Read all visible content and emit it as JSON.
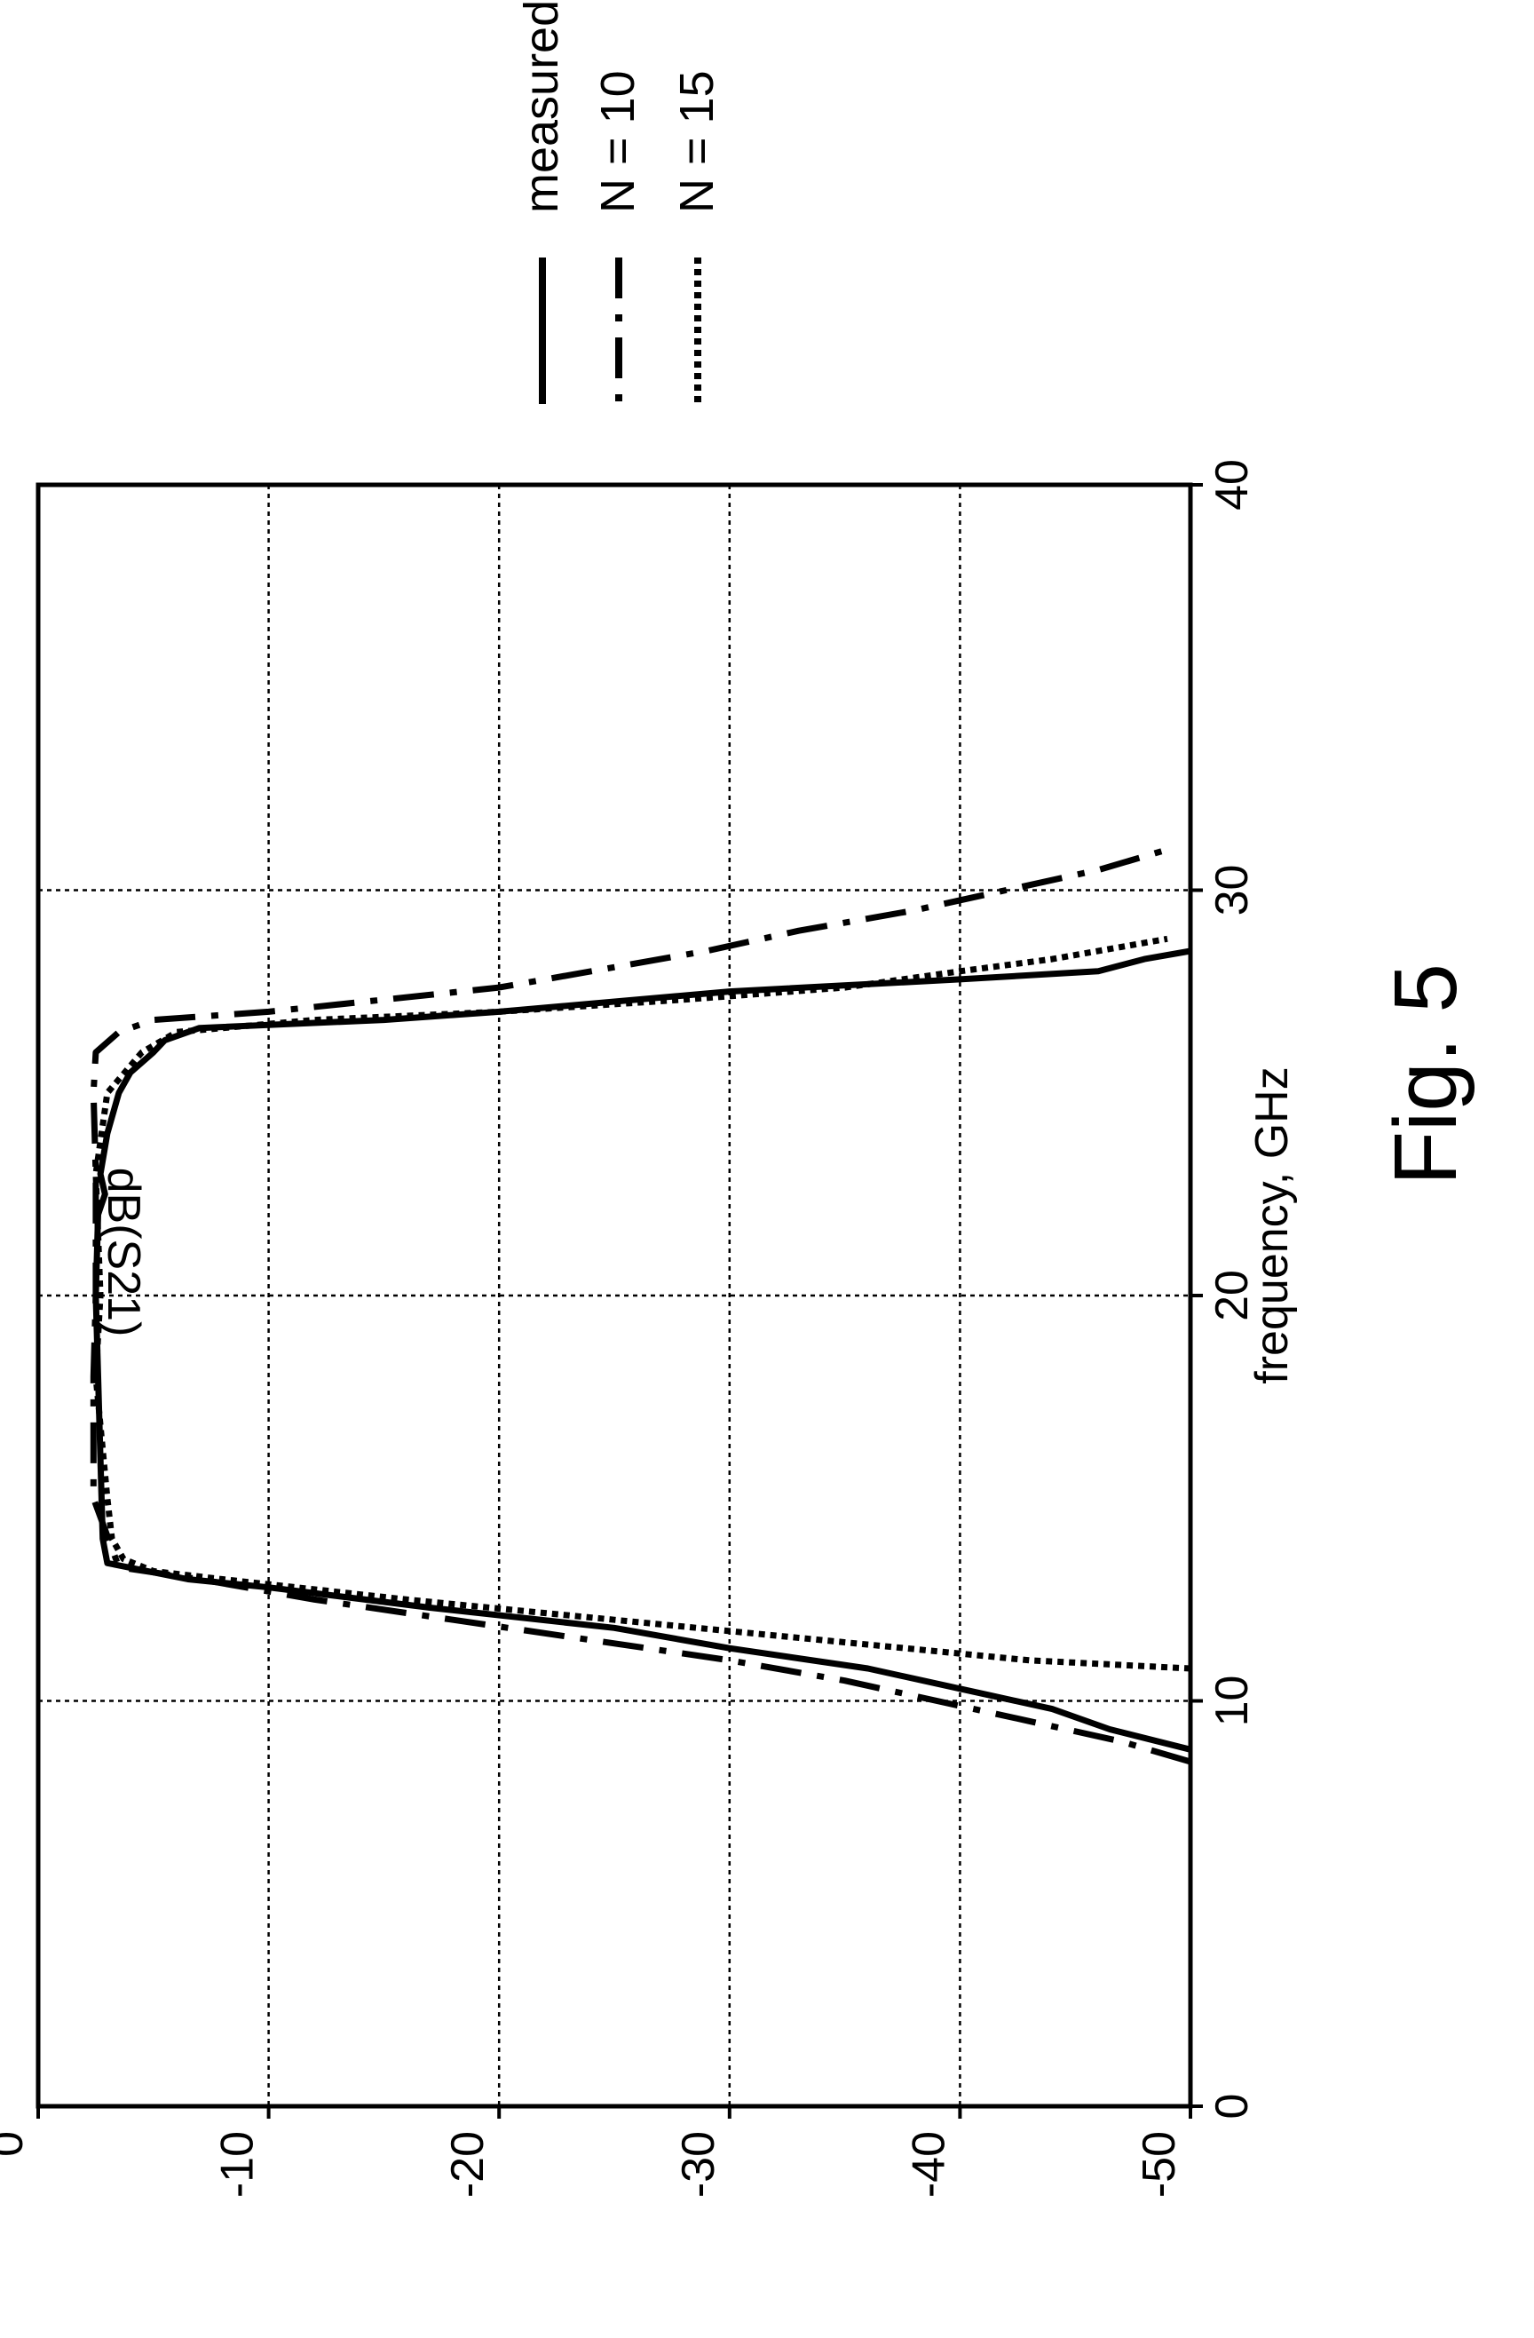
{
  "chart_data": {
    "type": "line",
    "title": "",
    "xlabel": "frequency, GHz",
    "ylabel": "dB(S21)",
    "xlim": [
      0,
      40
    ],
    "ylim": [
      -50,
      0
    ],
    "x_ticks": [
      0,
      10,
      20,
      30,
      40
    ],
    "y_ticks": [
      0,
      -10,
      -20,
      -30,
      -40,
      -50
    ],
    "x_tick_labels": [
      "0",
      "10",
      "20",
      "30",
      "40"
    ],
    "y_tick_labels": [
      "0",
      "-10",
      "-20",
      "-30",
      "-40",
      "-50"
    ],
    "grid": true,
    "legend_position": "top-right",
    "orientation": "rotated-90-ccw",
    "series": [
      {
        "name": "measured",
        "style": "solid",
        "x": [
          8.8,
          9.3,
          9.8,
          10.3,
          10.8,
          11.3,
          11.8,
          12.3,
          12.8,
          13.0,
          13.4,
          14.0,
          16.0,
          18.0,
          20.0,
          22.0,
          22.5,
          23.0,
          24.0,
          25.0,
          25.5,
          26.0,
          26.3,
          26.6,
          26.8,
          27.0,
          27.5,
          27.8,
          28.0,
          28.3,
          28.5
        ],
        "y": [
          -50,
          -46.5,
          -44,
          -40,
          -36,
          -30,
          -25,
          -17,
          -10,
          -6.5,
          -3,
          -2.8,
          -2.7,
          -2.6,
          -2.5,
          -2.6,
          -2.9,
          -2.7,
          -3.0,
          -3.5,
          -4.0,
          -5.0,
          -5.5,
          -7,
          -15,
          -20,
          -30,
          -40,
          -46,
          -48,
          -50
        ]
      },
      {
        "name": "N = 10",
        "style": "dash-dot",
        "x": [
          8.5,
          9.0,
          9.5,
          10.0,
          10.5,
          11.0,
          11.5,
          12.0,
          12.5,
          13.0,
          13.3,
          15.0,
          18.0,
          20.0,
          23.0,
          25.0,
          26.0,
          26.5,
          26.8,
          27.0,
          27.3,
          27.6,
          28.0,
          28.5,
          29.0,
          29.5,
          30.0,
          30.5,
          31.0
        ],
        "y": [
          -50,
          -47,
          -43,
          -39,
          -35,
          -30,
          -24,
          -18,
          -12,
          -7,
          -3.5,
          -2.4,
          -2.4,
          -2.5,
          -2.5,
          -2.4,
          -2.5,
          -3.5,
          -5,
          -10,
          -15,
          -20,
          -24,
          -29,
          -33,
          -38,
          -42,
          -46,
          -49
        ]
      },
      {
        "name": "N = 15",
        "style": "dotted",
        "x": [
          10.8,
          11.0,
          11.5,
          12.0,
          12.5,
          13.0,
          13.2,
          13.5,
          14.0,
          15.0,
          18.0,
          20.0,
          23.0,
          25.0,
          26.0,
          26.5,
          26.8,
          27.0,
          27.3,
          27.6,
          28.0,
          28.3,
          28.6,
          28.8
        ],
        "y": [
          -50,
          -43,
          -34,
          -25,
          -16,
          -8,
          -5,
          -3.7,
          -3.2,
          -3.0,
          -2.5,
          -2.7,
          -2.5,
          -3.0,
          -4.5,
          -6,
          -12,
          -20,
          -28,
          -35,
          -40,
          -44,
          -47,
          -49
        ]
      }
    ]
  },
  "figure": {
    "caption": "Fig. 5"
  }
}
